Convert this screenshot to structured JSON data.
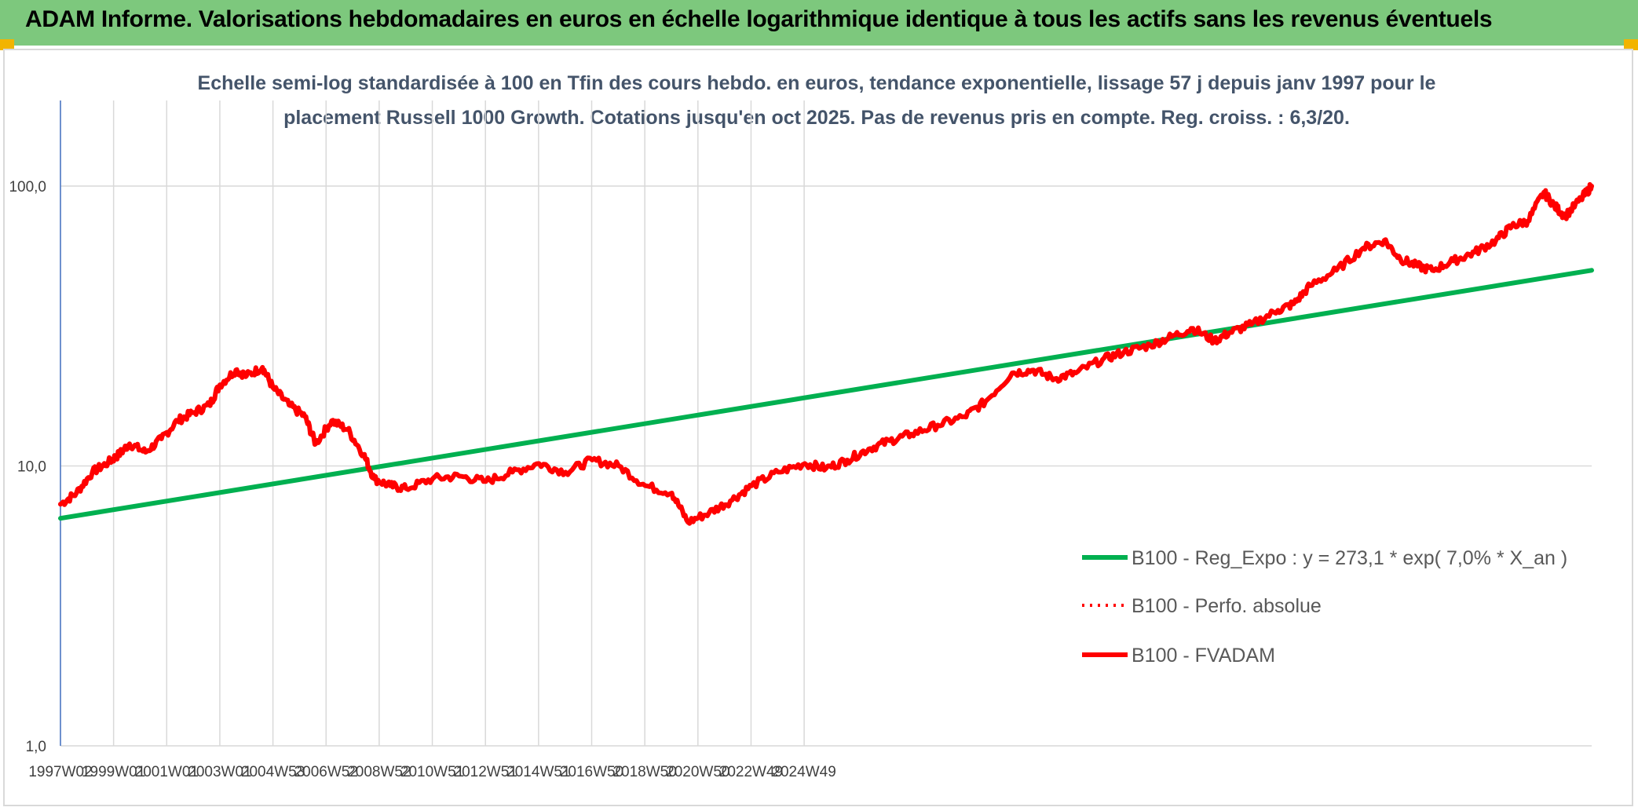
{
  "header": {
    "title": "ADAM Informe. Valorisations hebdomadaires en euros en échelle logarithmique identique à tous les actifs sans les revenus éventuels"
  },
  "colors": {
    "banner": "#7dc87d",
    "trend": "#00b050",
    "series": "#ff0000",
    "subtitle": "#44546a"
  },
  "chart_data": {
    "type": "line",
    "subtitle_line1": "Echelle semi-log standardisée à 100 en Tfin des cours hebdo. en euros, tendance exponentielle, lissage 57 j depuis janv 1997 pour le",
    "subtitle_line2": "placement Russell 1000 Growth. Cotations jusqu'en oct 2025. Pas de revenus pris en compte. Reg. croiss. : 6,3/20.",
    "y_scale": "log",
    "ylim": [
      1,
      100
    ],
    "y_ticks": [
      "100,0",
      "10,0",
      "1,0"
    ],
    "x_range": [
      1997.0,
      2025.8
    ],
    "x_ticks": [
      "1997W02",
      "1999W01",
      "2001W01",
      "2003W01",
      "2004W53",
      "2006W52",
      "2008W52",
      "2010W51",
      "2012W51",
      "2014W51",
      "2016W50",
      "2018W50",
      "2020W50",
      "2022W49",
      "2024W49"
    ],
    "grid": "vertical and horizontal",
    "legend_position": "bottom-right",
    "series": [
      {
        "name": "B100 - Reg_Expo : y = 273,1 * exp( 7,0% *  X_an )",
        "style": "solid",
        "x": [
          1997.0,
          2025.8
        ],
        "y": [
          6.5,
          50.0
        ]
      },
      {
        "name": "B100 - Perfo. absolue",
        "style": "dotted",
        "x": [],
        "y": []
      },
      {
        "name": "B100 - FVADAM",
        "style": "solid",
        "x": [
          1997.0,
          1997.3,
          1997.6,
          1997.9,
          1998.1,
          1998.3,
          1998.6,
          1998.9,
          1999.2,
          1999.5,
          1999.8,
          2000.0,
          2000.3,
          2000.5,
          2000.8,
          2001.0,
          2001.3,
          2001.6,
          2001.8,
          2002.1,
          2002.4,
          2002.7,
          2002.9,
          2003.2,
          2003.5,
          2004.0,
          2004.5,
          2005.0,
          2005.5,
          2006.0,
          2006.5,
          2007.0,
          2007.5,
          2008.0,
          2008.5,
          2008.8,
          2009.2,
          2009.6,
          2010.0,
          2010.5,
          2011.0,
          2011.4,
          2011.8,
          2012.2,
          2012.6,
          2013.0,
          2013.5,
          2014.0,
          2014.4,
          2014.9,
          2015.3,
          2015.7,
          2016.1,
          2016.6,
          2017.0,
          2017.5,
          2017.9,
          2018.3,
          2018.7,
          2019.0,
          2019.4,
          2019.9,
          2020.2,
          2020.5,
          2021.0,
          2021.5,
          2021.9,
          2022.2,
          2022.5,
          2022.8,
          2023.2,
          2023.6,
          2024.0,
          2024.3,
          2024.6,
          2024.9,
          2025.1,
          2025.3,
          2025.6,
          2025.8
        ],
        "y": [
          7.3,
          8.0,
          9.5,
          10.3,
          11.0,
          12.0,
          11.2,
          12.5,
          14.5,
          15.5,
          16.5,
          19.5,
          22.0,
          21.0,
          22.5,
          19.0,
          16.5,
          15.0,
          12.0,
          14.5,
          13.5,
          11.0,
          9.0,
          8.5,
          8.3,
          9.0,
          9.2,
          8.8,
          9.5,
          10.2,
          9.5,
          10.5,
          10.0,
          8.5,
          8.0,
          6.3,
          6.8,
          7.5,
          8.5,
          9.5,
          10.2,
          9.8,
          10.5,
          11.5,
          12.3,
          13.0,
          14.0,
          15.0,
          17.0,
          21.5,
          22.0,
          20.5,
          21.5,
          24.0,
          25.5,
          27.0,
          29.0,
          31.0,
          28.0,
          30.0,
          32.0,
          36.0,
          38.0,
          44.0,
          50.0,
          60.0,
          64.0,
          55.0,
          52.0,
          50.0,
          54.0,
          58.0,
          64.0,
          72.0,
          75.0,
          95.0,
          85.0,
          78.0,
          90.0,
          100.0
        ]
      }
    ]
  }
}
